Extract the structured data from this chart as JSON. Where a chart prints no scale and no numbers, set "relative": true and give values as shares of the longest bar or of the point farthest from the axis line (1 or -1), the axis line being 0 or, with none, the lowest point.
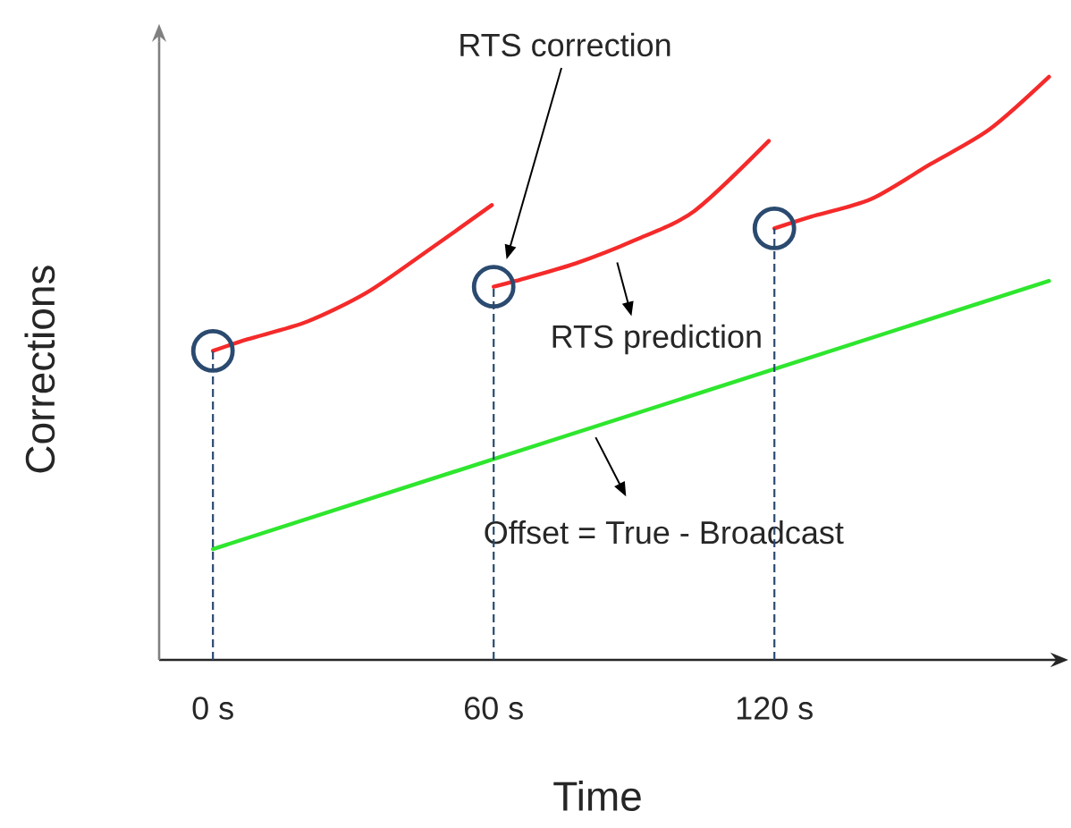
{
  "chart_data": {
    "type": "line",
    "relative": true,
    "xlabel": "Time",
    "ylabel": "Corrections",
    "xlim": [
      -11.5,
      179
    ],
    "xticks": [
      {
        "value": 0,
        "label": "0 s"
      },
      {
        "value": 60,
        "label": "60 s"
      },
      {
        "value": 120,
        "label": "120 s"
      }
    ],
    "tick_labels": "x",
    "series": [
      {
        "color": "#2ee62e",
        "x": [
          0,
          178.7
        ],
        "values": [
          0.19,
          0.65
        ]
      },
      {
        "color": "#f52a2a",
        "x": [
          0,
          7.4,
          20.1,
          32.9,
          45.6,
          59.6
        ],
        "values": [
          0.53,
          0.55,
          0.58,
          0.63,
          0.7,
          0.78
        ]
      },
      {
        "color": "#f52a2a",
        "x": [
          60,
          64.7,
          77.5,
          90.2,
          102.9,
          118.8
        ],
        "values": [
          0.64,
          0.65,
          0.68,
          0.72,
          0.77,
          0.89
        ]
      },
      {
        "color": "#f52a2a",
        "x": [
          120,
          127.8,
          140.6,
          153.3,
          166,
          178.7
        ],
        "values": [
          0.74,
          0.76,
          0.79,
          0.85,
          0.91,
          1.0
        ]
      },
      {
        "type": "lollipop",
        "marker": "circle",
        "line_style": "dashed",
        "color": "#2b4a6f",
        "x": [
          0,
          60,
          120
        ],
        "values": [
          0.53,
          0.64,
          0.74
        ]
      }
    ],
    "annotations": [
      "RTS correction",
      {
        "text": "RTS prediction",
        "x": 86.4,
        "y": 0.7
      },
      {
        "text": "Offset = True - Broadcast",
        "x": 81.8,
        "y": 0.4
      }
    ]
  }
}
